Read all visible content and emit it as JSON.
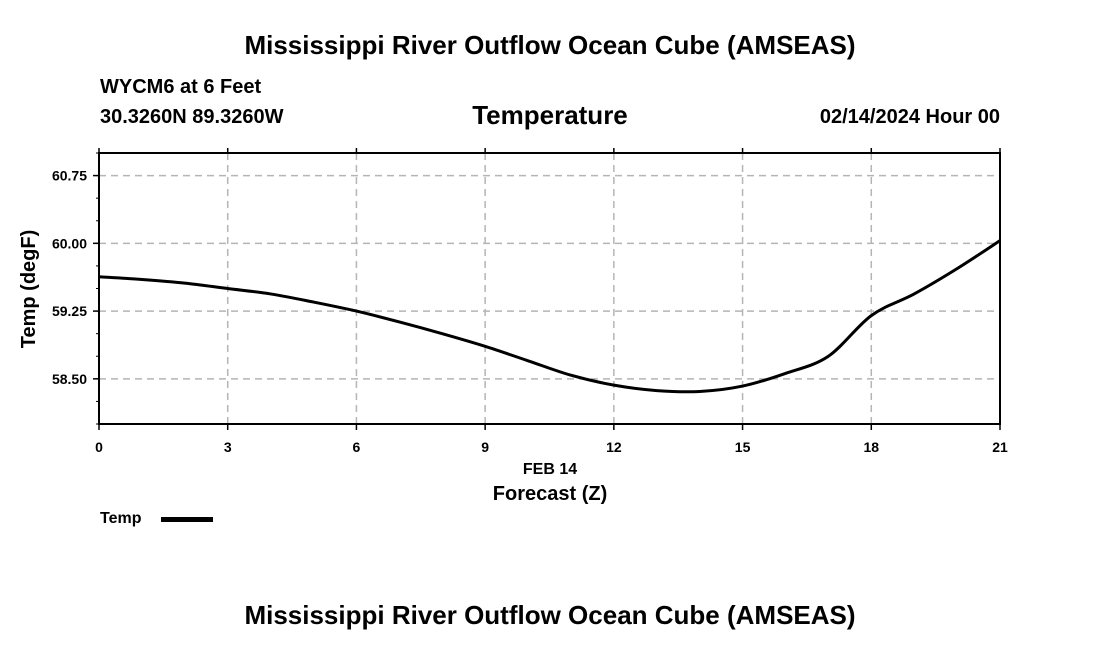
{
  "header": {
    "top_title": "Mississippi River Outflow Ocean Cube (AMSEAS)",
    "station": "WYCM6 at 6 Feet",
    "coords": "30.3260N  89.3260W",
    "variable": "Temperature",
    "datetime": "02/14/2024 Hour 00"
  },
  "footer": {
    "bottom_title": "Mississippi River Outflow Ocean Cube (AMSEAS)"
  },
  "legend": {
    "label": "Temp"
  },
  "chart_data": {
    "type": "line",
    "title": "Temperature",
    "xlabel": "Forecast (Z)",
    "xlabel_date": "FEB 14",
    "ylabel": "Temp (degF)",
    "xlim": [
      0,
      21
    ],
    "ylim": [
      58.0,
      61.0
    ],
    "x_ticks": [
      0,
      3,
      6,
      9,
      12,
      15,
      18,
      21
    ],
    "x_tick_labels": [
      "0",
      "3",
      "6",
      "9",
      "12",
      "15",
      "18",
      "21"
    ],
    "y_ticks": [
      58.5,
      59.25,
      60.0,
      60.75
    ],
    "y_tick_labels": [
      "58.50",
      "59.25",
      "60.00",
      "60.75"
    ],
    "grid": true,
    "series": [
      {
        "name": "Temp",
        "color": "#000000",
        "x": [
          0,
          1,
          2,
          3,
          4,
          5,
          6,
          7,
          8,
          9,
          10,
          11,
          12,
          13,
          14,
          15,
          16,
          17,
          18,
          19,
          20,
          21
        ],
        "values": [
          59.63,
          59.6,
          59.56,
          59.5,
          59.44,
          59.35,
          59.25,
          59.13,
          59.0,
          58.86,
          58.7,
          58.54,
          58.43,
          58.37,
          58.36,
          58.42,
          58.56,
          58.75,
          59.2,
          59.44,
          59.72,
          60.03
        ]
      }
    ]
  }
}
